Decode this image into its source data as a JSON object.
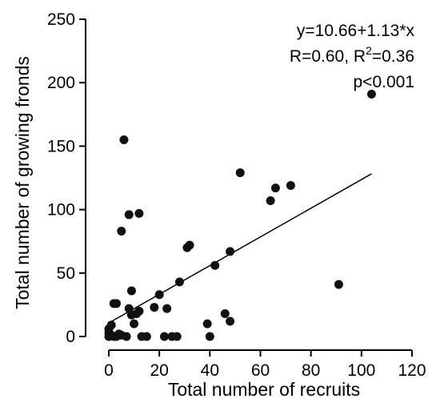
{
  "chart_data": {
    "type": "scatter",
    "title": "",
    "xlabel": "Total number of recruits",
    "ylabel": "Total number of growing fronds",
    "xlim": [
      0,
      120
    ],
    "ylim": [
      0,
      250
    ],
    "x_ticks": [
      "0",
      "20",
      "40",
      "60",
      "80",
      "100",
      "120"
    ],
    "y_ticks": [
      "0",
      "50",
      "100",
      "150",
      "200",
      "250"
    ],
    "annotation": {
      "equation": "y=10.66+1.13*x",
      "r_prefix": "R=0.60, R",
      "r_sup": "2",
      "r_suffix": "=0.36",
      "pvalue": "p<0.001"
    },
    "regression_line": {
      "intercept": 10.66,
      "slope": 1.13,
      "x_range": [
        0,
        104
      ]
    },
    "points": [
      [
        0,
        0
      ],
      [
        0,
        3
      ],
      [
        0,
        6
      ],
      [
        1,
        9
      ],
      [
        1,
        1
      ],
      [
        2,
        0
      ],
      [
        3,
        0
      ],
      [
        2,
        26
      ],
      [
        3,
        26
      ],
      [
        4,
        2
      ],
      [
        5,
        1
      ],
      [
        5,
        83
      ],
      [
        6,
        155
      ],
      [
        7,
        0
      ],
      [
        8,
        22
      ],
      [
        8,
        96
      ],
      [
        9,
        36
      ],
      [
        9,
        17
      ],
      [
        10,
        10
      ],
      [
        11,
        18
      ],
      [
        12,
        97
      ],
      [
        12,
        20
      ],
      [
        13,
        0
      ],
      [
        15,
        0
      ],
      [
        18,
        23
      ],
      [
        20,
        33
      ],
      [
        22,
        0
      ],
      [
        23,
        22
      ],
      [
        25,
        0
      ],
      [
        27,
        0
      ],
      [
        28,
        43
      ],
      [
        31,
        70
      ],
      [
        32,
        72
      ],
      [
        39,
        10
      ],
      [
        40,
        0
      ],
      [
        42,
        56
      ],
      [
        46,
        18
      ],
      [
        48,
        67
      ],
      [
        48,
        12
      ],
      [
        52,
        129
      ],
      [
        64,
        107
      ],
      [
        66,
        117
      ],
      [
        72,
        119
      ],
      [
        91,
        41
      ],
      [
        104,
        191
      ]
    ]
  }
}
